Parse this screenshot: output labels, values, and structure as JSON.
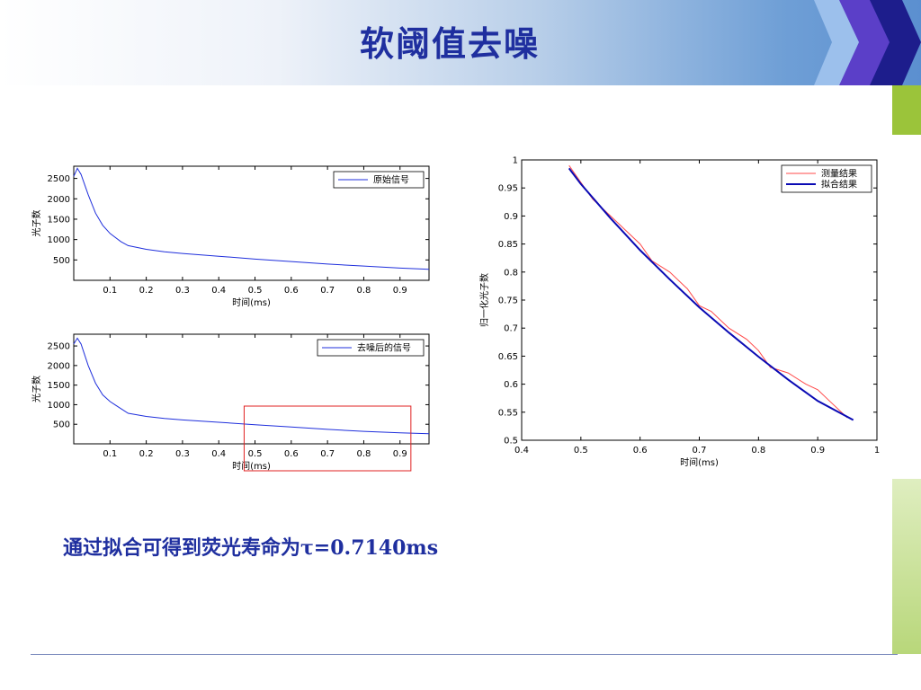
{
  "slide": {
    "title": "软阈值去噪",
    "conclusion": "通过拟合可得到荧光寿命为τ=0.7140ms"
  },
  "colors": {
    "title": "#1f2f9f",
    "signal": "#1f2fdc",
    "measured": "#ff4a4a",
    "fit": "#0a0ab4",
    "highlight_box": "#e02020",
    "accent_green": "#9bc43a"
  },
  "chart_data": [
    {
      "type": "line",
      "xlabel": "时间(ms)",
      "ylabel": "光子数",
      "xlim": [
        0,
        0.98
      ],
      "ylim": [
        0,
        2800
      ],
      "xticks": [
        0.1,
        0.2,
        0.3,
        0.4,
        0.5,
        0.6,
        0.7,
        0.8,
        0.9
      ],
      "yticks": [
        500,
        1000,
        1500,
        2000,
        2500
      ],
      "legend_position": "top-right",
      "series": [
        {
          "name": "原始信号",
          "x": [
            0.0,
            0.01,
            0.02,
            0.04,
            0.06,
            0.08,
            0.1,
            0.13,
            0.15,
            0.2,
            0.25,
            0.3,
            0.4,
            0.5,
            0.6,
            0.7,
            0.8,
            0.9,
            0.98
          ],
          "values": [
            2550,
            2750,
            2600,
            2100,
            1650,
            1350,
            1150,
            950,
            850,
            760,
            700,
            660,
            590,
            520,
            460,
            400,
            350,
            300,
            270
          ]
        }
      ]
    },
    {
      "type": "line",
      "xlabel": "时间(ms)",
      "ylabel": "光子数",
      "xlim": [
        0,
        0.98
      ],
      "ylim": [
        0,
        2800
      ],
      "xticks": [
        0.1,
        0.2,
        0.3,
        0.4,
        0.5,
        0.6,
        0.7,
        0.8,
        0.9
      ],
      "yticks": [
        500,
        1000,
        1500,
        2000,
        2500
      ],
      "legend_position": "top-right",
      "highlight_x_range": [
        0.47,
        0.93
      ],
      "series": [
        {
          "name": "去噪后的信号",
          "x": [
            0.0,
            0.01,
            0.02,
            0.04,
            0.06,
            0.08,
            0.1,
            0.13,
            0.15,
            0.2,
            0.25,
            0.3,
            0.4,
            0.5,
            0.6,
            0.7,
            0.8,
            0.9,
            0.98
          ],
          "values": [
            2550,
            2700,
            2550,
            2000,
            1550,
            1250,
            1080,
            900,
            780,
            700,
            650,
            610,
            550,
            490,
            430,
            370,
            320,
            280,
            260
          ]
        }
      ]
    },
    {
      "type": "line",
      "xlabel": "时间(ms)",
      "ylabel": "归一化光子数",
      "xlim": [
        0.4,
        1.0
      ],
      "ylim": [
        0.5,
        1.0
      ],
      "xticks": [
        0.4,
        0.5,
        0.6,
        0.7,
        0.8,
        0.9,
        1
      ],
      "yticks": [
        0.5,
        0.55,
        0.6,
        0.65,
        0.7,
        0.75,
        0.8,
        0.85,
        0.9,
        0.95,
        1
      ],
      "legend_position": "top-right",
      "series": [
        {
          "name": "测量结果",
          "x": [
            0.48,
            0.5,
            0.52,
            0.55,
            0.58,
            0.6,
            0.62,
            0.65,
            0.68,
            0.7,
            0.72,
            0.75,
            0.78,
            0.8,
            0.82,
            0.85,
            0.88,
            0.9,
            0.92,
            0.95
          ],
          "values": [
            0.99,
            0.96,
            0.93,
            0.9,
            0.87,
            0.85,
            0.82,
            0.8,
            0.77,
            0.74,
            0.73,
            0.7,
            0.68,
            0.66,
            0.63,
            0.62,
            0.6,
            0.59,
            0.57,
            0.54
          ]
        },
        {
          "name": "拟合结果",
          "x": [
            0.48,
            0.5,
            0.55,
            0.6,
            0.65,
            0.7,
            0.75,
            0.8,
            0.85,
            0.9,
            0.96
          ],
          "values": [
            0.985,
            0.957,
            0.896,
            0.839,
            0.787,
            0.737,
            0.692,
            0.649,
            0.608,
            0.57,
            0.536
          ]
        }
      ]
    }
  ]
}
